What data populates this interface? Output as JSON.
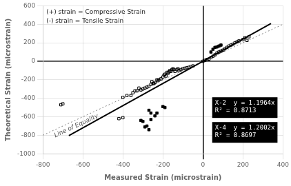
{
  "chart_data": {
    "type": "scatter",
    "x_label": "Measured Strain (microstrain)",
    "y_label": "Theoretical Strain (microstrain)",
    "xlim": [
      -800,
      400
    ],
    "ylim": [
      -1000,
      600
    ],
    "xticks": [
      -800,
      -600,
      -400,
      -200,
      0,
      200,
      400
    ],
    "yticks": [
      -1000,
      -800,
      -600,
      -400,
      -200,
      0,
      200,
      400,
      600
    ],
    "grid": true,
    "annotations": [
      "(+) strain = Compressive Strain",
      "(-) strain = Tensile Strain",
      "Line of Equality",
      [
        "X-2  y = 1.1964x",
        "R² = 0.8713"
      ],
      [
        "X-4  y = 1.2002x",
        "R² = 0.8697"
      ]
    ],
    "series": [
      {
        "type": "scatter",
        "marker": "square_open",
        "color": "black",
        "x": [
          -100,
          -110,
          -120,
          -125,
          -130,
          -140,
          -145,
          -150,
          -155,
          -160,
          -165,
          -170,
          -175,
          -180,
          -185,
          -190,
          -195,
          -200,
          -210,
          -220,
          -225,
          -230,
          -240,
          -245,
          -250,
          -255,
          -260,
          -270,
          -280,
          -290,
          -300,
          -310,
          -320,
          -330,
          -340,
          -350,
          -360,
          -380,
          -400,
          -50,
          -60,
          -70,
          -80,
          -90,
          0,
          10,
          20,
          30,
          40,
          50,
          60,
          70,
          80,
          90,
          100,
          110,
          120,
          130,
          140,
          150,
          160,
          170,
          180,
          200,
          210,
          220,
          230
        ],
        "values": [
          -80,
          -90,
          -100,
          -80,
          -90,
          -110,
          -90,
          -80,
          -90,
          -110,
          -100,
          -115,
          -130,
          -120,
          -160,
          -140,
          -150,
          -170,
          -190,
          -200,
          -210,
          -200,
          -230,
          -240,
          -240,
          -220,
          -250,
          -270,
          -280,
          -290,
          -300,
          -310,
          -290,
          -320,
          -320,
          -340,
          -370,
          -370,
          -390,
          -50,
          -55,
          -65,
          -70,
          -75,
          0,
          10,
          20,
          25,
          40,
          55,
          70,
          90,
          100,
          110,
          120,
          135,
          150,
          165,
          175,
          185,
          200,
          210,
          220,
          235,
          255,
          225,
          265
        ]
      },
      {
        "type": "scatter",
        "marker": "square",
        "color": "black",
        "x": [
          -310,
          -300,
          -290,
          -280,
          -270,
          -260,
          -240,
          -230,
          40,
          50,
          60,
          70,
          80,
          90
        ],
        "values": [
          -640,
          -650,
          -710,
          -700,
          -740,
          -630,
          -590,
          -560,
          100,
          130,
          150,
          155,
          165,
          175
        ]
      },
      {
        "type": "scatter",
        "marker": "square_open",
        "color": "black",
        "x": [
          -700,
          -710,
          -400,
          -420
        ],
        "values": [
          -460,
          -470,
          -610,
          -620
        ]
      },
      {
        "type": "scatter",
        "marker": "square",
        "color": "black",
        "x": [
          -270,
          -260,
          -200,
          -190
        ],
        "values": [
          -530,
          -560,
          -490,
          -500
        ]
      },
      {
        "type": "line",
        "line_style": "dotted",
        "color": "gray",
        "x": [
          -800,
          400
        ],
        "values": [
          -800,
          400
        ]
      },
      {
        "type": "line",
        "line_style": "solid",
        "color": "black",
        "x": [
          -670,
          340
        ],
        "values": [
          -804,
          408
        ]
      }
    ]
  }
}
